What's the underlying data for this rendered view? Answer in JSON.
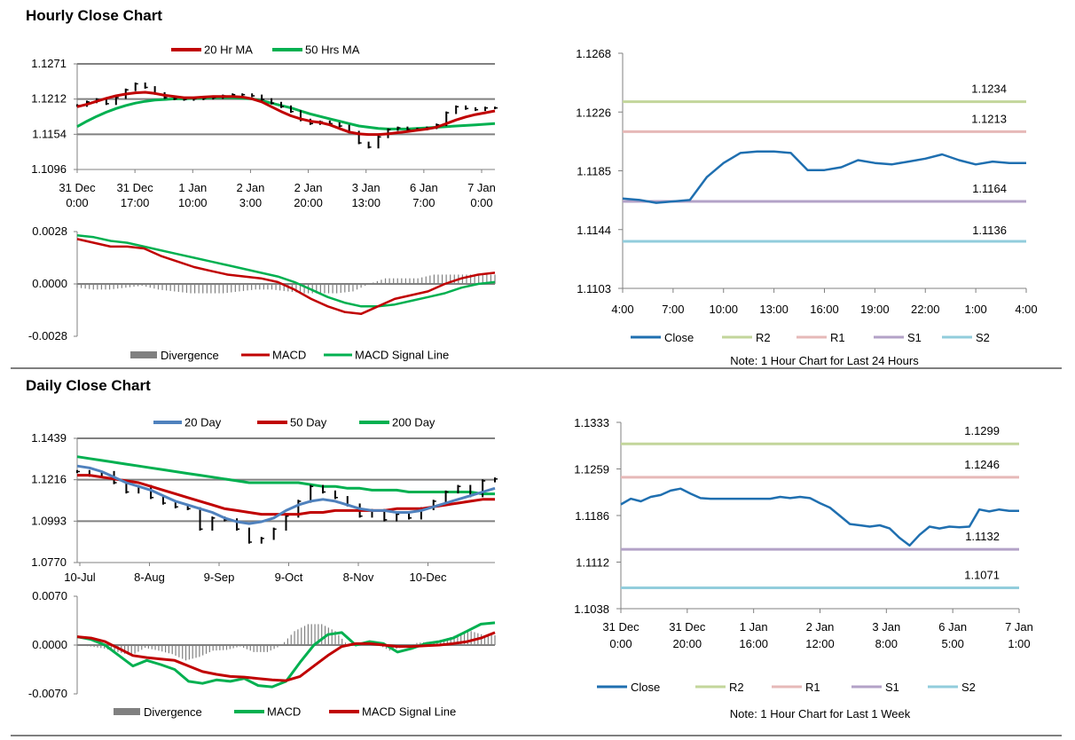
{
  "sections": {
    "hourly_title": "Hourly Close Chart",
    "daily_title": "Daily Close Chart"
  },
  "colors": {
    "close": "#1f6fb0",
    "r2": "#c3d69b",
    "r1": "#e6b9b8",
    "s1": "#b3a2c7",
    "s2": "#92cddc",
    "ma_red": "#c00000",
    "ma_green": "#00b050",
    "ma_blue": "#4f81bd",
    "divergence": "#808080",
    "grid": "#808080",
    "price": "#000000"
  },
  "chart_data": [
    {
      "id": "hourly-price",
      "type": "line",
      "title": "Hourly Close Chart",
      "legend": [
        "20 Hr MA",
        "50 Hrs MA"
      ],
      "y_ticks": [
        "1.1271",
        "1.1212",
        "1.1154",
        "1.1096"
      ],
      "ylim": [
        1.1096,
        1.1271
      ],
      "x_ticks": [
        [
          "31 Dec",
          "0:00"
        ],
        [
          "31 Dec",
          "17:00"
        ],
        [
          "1 Jan",
          "10:00"
        ],
        [
          "2 Jan",
          "3:00"
        ],
        [
          "2 Jan",
          "20:00"
        ],
        [
          "3 Jan",
          "13:00"
        ],
        [
          "6 Jan",
          "7:00"
        ],
        [
          "7 Jan",
          "0:00"
        ]
      ],
      "series": [
        {
          "name": "Price",
          "values": [
            1.1202,
            1.1208,
            1.1212,
            1.1205,
            1.1215,
            1.1228,
            1.1238,
            1.1232,
            1.1222,
            1.1215,
            1.1213,
            1.1212,
            1.1213,
            1.1214,
            1.1215,
            1.1218,
            1.122,
            1.122,
            1.1218,
            1.1212,
            1.1206,
            1.12,
            1.1192,
            1.1178,
            1.1172,
            1.1175,
            1.1172,
            1.1168,
            1.1158,
            1.114,
            1.1133,
            1.115,
            1.1162,
            1.1165,
            1.1162,
            1.1163,
            1.1165,
            1.117,
            1.119,
            1.12,
            1.1197,
            1.1195,
            1.1198,
            1.1198
          ]
        },
        {
          "name": "20 Hr MA",
          "values": [
            1.12,
            1.1204,
            1.1209,
            1.1214,
            1.1218,
            1.1221,
            1.1223,
            1.1224,
            1.1222,
            1.1219,
            1.1217,
            1.1215,
            1.1215,
            1.1216,
            1.1217,
            1.1217,
            1.1217,
            1.1216,
            1.1213,
            1.1208,
            1.12,
            1.1192,
            1.1185,
            1.118,
            1.1176,
            1.1174,
            1.117,
            1.1164,
            1.1158,
            1.1155,
            1.1154,
            1.1154,
            1.1155,
            1.1157,
            1.1159,
            1.1161,
            1.1163,
            1.1166,
            1.1172,
            1.1178,
            1.1183,
            1.1187,
            1.119,
            1.1193
          ]
        },
        {
          "name": "50 Hrs MA",
          "values": [
            1.1167,
            1.1176,
            1.1184,
            1.1191,
            1.1197,
            1.1202,
            1.1206,
            1.1209,
            1.1211,
            1.1212,
            1.1213,
            1.1213,
            1.1214,
            1.1214,
            1.1215,
            1.1215,
            1.1215,
            1.1214,
            1.1213,
            1.121,
            1.1206,
            1.1202,
            1.1198,
            1.1193,
            1.1188,
            1.1184,
            1.118,
            1.1176,
            1.1172,
            1.1168,
            1.1166,
            1.1164,
            1.1163,
            1.1163,
            1.1163,
            1.1164,
            1.1165,
            1.1166,
            1.1167,
            1.1168,
            1.1169,
            1.117,
            1.1171,
            1.1172
          ]
        }
      ]
    },
    {
      "id": "hourly-macd",
      "type": "line",
      "y_ticks": [
        "0.0028",
        "0.0000",
        "-0.0028"
      ],
      "ylim": [
        -0.0028,
        0.0028
      ],
      "legend": [
        "Divergence",
        "MACD",
        "MACD Signal Line"
      ],
      "series": [
        {
          "name": "MACD",
          "values": [
            0.0024,
            0.0022,
            0.002,
            0.002,
            0.0019,
            0.0015,
            0.0012,
            0.0009,
            0.0007,
            0.0005,
            0.0004,
            0.0003,
            0.0001,
            -0.0003,
            -0.0008,
            -0.0012,
            -0.0015,
            -0.0016,
            -0.0012,
            -0.0008,
            -0.0006,
            -0.0004,
            0.0,
            0.0003,
            0.0005,
            0.0006
          ]
        },
        {
          "name": "MACD Signal Line",
          "values": [
            0.0026,
            0.0025,
            0.0023,
            0.0022,
            0.002,
            0.0018,
            0.0016,
            0.0014,
            0.0012,
            0.001,
            0.0008,
            0.0006,
            0.0004,
            0.0001,
            -0.0003,
            -0.0007,
            -0.001,
            -0.0012,
            -0.0012,
            -0.0011,
            -0.0009,
            -0.0007,
            -0.0005,
            -0.0002,
            0.0,
            0.0001
          ]
        },
        {
          "name": "Divergence",
          "values": [
            -0.0002,
            -0.0003,
            -0.0003,
            -0.0002,
            -0.0001,
            -0.0003,
            -0.0004,
            -0.0005,
            -0.0005,
            -0.0005,
            -0.0004,
            -0.0003,
            -0.0003,
            -0.0004,
            -0.0005,
            -0.0005,
            -0.0005,
            -0.0004,
            0.0,
            0.0003,
            0.0003,
            0.0003,
            0.0005,
            0.0005,
            0.0005,
            0.0005
          ]
        }
      ]
    },
    {
      "id": "hourly-levels",
      "type": "line",
      "y_ticks": [
        "1.1268",
        "1.1226",
        "1.1185",
        "1.1144",
        "1.1103"
      ],
      "ylim": [
        1.1103,
        1.1268
      ],
      "x_ticks": [
        "4:00",
        "7:00",
        "10:00",
        "13:00",
        "16:00",
        "19:00",
        "22:00",
        "1:00",
        "4:00"
      ],
      "legend": [
        "Close",
        "R2",
        "R1",
        "S1",
        "S2"
      ],
      "note": "Note: 1 Hour Chart for Last 24 Hours",
      "levels": {
        "R2": 1.1234,
        "R1": 1.1213,
        "S1": 1.1164,
        "S2": 1.1136
      },
      "level_labels": {
        "R2": "1.1234",
        "R1": "1.1213",
        "S1": "1.1164",
        "S2": "1.1136"
      },
      "series": [
        {
          "name": "Close",
          "values": [
            1.1166,
            1.1165,
            1.1163,
            1.1164,
            1.1165,
            1.1181,
            1.1191,
            1.1198,
            1.1199,
            1.1199,
            1.1198,
            1.1186,
            1.1186,
            1.1188,
            1.1193,
            1.1191,
            1.119,
            1.1192,
            1.1194,
            1.1197,
            1.1193,
            1.119,
            1.1192,
            1.1191,
            1.1191
          ]
        }
      ]
    },
    {
      "id": "daily-price",
      "type": "line",
      "title": "Daily Close Chart",
      "legend": [
        "20 Day",
        "50 Day",
        "200 Day"
      ],
      "y_ticks": [
        "1.1439",
        "1.1216",
        "1.0993",
        "1.0770"
      ],
      "ylim": [
        1.077,
        1.1439
      ],
      "x_ticks": [
        "10-Jul",
        "8-Aug",
        "9-Sep",
        "9-Oct",
        "8-Nov",
        "10-Dec"
      ],
      "series": [
        {
          "name": "Price",
          "values": [
            1.126,
            1.124,
            1.1255,
            1.12,
            1.115,
            1.118,
            1.112,
            1.109,
            1.107,
            1.106,
            1.095,
            1.101,
            1.1,
            1.095,
            1.088,
            1.09,
            1.095,
            1.102,
            1.11,
            1.118,
            1.115,
            1.112,
            1.108,
            1.102,
            1.105,
            1.1,
            1.103,
            1.101,
            1.106,
            1.11,
            1.115,
            1.118,
            1.113,
            1.121,
            1.122
          ]
        },
        {
          "name": "20 Day",
          "values": [
            1.129,
            1.128,
            1.126,
            1.123,
            1.12,
            1.118,
            1.116,
            1.113,
            1.11,
            1.108,
            1.106,
            1.104,
            1.101,
            1.099,
            1.098,
            1.099,
            1.101,
            1.105,
            1.108,
            1.11,
            1.111,
            1.11,
            1.108,
            1.106,
            1.105,
            1.105,
            1.104,
            1.104,
            1.105,
            1.107,
            1.109,
            1.111,
            1.113,
            1.115,
            1.117
          ]
        },
        {
          "name": "50 Day",
          "values": [
            1.124,
            1.124,
            1.123,
            1.122,
            1.121,
            1.12,
            1.118,
            1.116,
            1.114,
            1.112,
            1.11,
            1.108,
            1.106,
            1.105,
            1.104,
            1.103,
            1.103,
            1.103,
            1.103,
            1.104,
            1.104,
            1.105,
            1.105,
            1.105,
            1.105,
            1.105,
            1.106,
            1.106,
            1.106,
            1.107,
            1.108,
            1.109,
            1.11,
            1.111,
            1.111
          ]
        },
        {
          "name": "200 Day",
          "values": [
            1.134,
            1.133,
            1.132,
            1.131,
            1.13,
            1.129,
            1.128,
            1.127,
            1.126,
            1.125,
            1.124,
            1.123,
            1.122,
            1.121,
            1.12,
            1.12,
            1.12,
            1.12,
            1.12,
            1.119,
            1.118,
            1.118,
            1.117,
            1.117,
            1.116,
            1.116,
            1.116,
            1.115,
            1.115,
            1.115,
            1.115,
            1.115,
            1.115,
            1.114,
            1.114
          ]
        }
      ]
    },
    {
      "id": "daily-macd",
      "type": "line",
      "y_ticks": [
        "0.0070",
        "0.0000",
        "-0.0070"
      ],
      "ylim": [
        -0.007,
        0.007
      ],
      "legend": [
        "Divergence",
        "MACD",
        "MACD Signal Line"
      ],
      "series": [
        {
          "name": "MACD",
          "values": [
            0.0012,
            0.0008,
            0.0,
            -0.0015,
            -0.003,
            -0.0022,
            -0.0028,
            -0.0035,
            -0.0052,
            -0.0055,
            -0.005,
            -0.0052,
            -0.0048,
            -0.0058,
            -0.006,
            -0.0052,
            -0.0025,
            0.0,
            0.0015,
            0.0018,
            0.0,
            0.0005,
            0.0002,
            -0.001,
            -0.0005,
            0.0002,
            0.0005,
            0.001,
            0.002,
            0.003,
            0.0032
          ]
        },
        {
          "name": "MACD Signal Line",
          "values": [
            0.0012,
            0.001,
            0.0005,
            -0.0005,
            -0.0015,
            -0.0018,
            -0.002,
            -0.0022,
            -0.003,
            -0.0038,
            -0.0042,
            -0.0045,
            -0.0046,
            -0.0048,
            -0.005,
            -0.0051,
            -0.0045,
            -0.003,
            -0.0015,
            -0.0002,
            0.0002,
            0.0002,
            0.0,
            -0.0002,
            -0.0002,
            -0.0001,
            0.0,
            0.0002,
            0.0005,
            0.001,
            0.0018
          ]
        },
        {
          "name": "Divergence",
          "values": [
            0.0,
            -0.0002,
            -0.0005,
            -0.001,
            -0.0015,
            -0.0004,
            -0.0008,
            -0.0013,
            -0.0022,
            -0.0017,
            -0.0008,
            -0.0007,
            -0.0002,
            -0.001,
            -0.001,
            -0.0001,
            0.002,
            0.003,
            0.003,
            0.002,
            -0.0002,
            0.0003,
            0.0002,
            -0.0008,
            -0.0003,
            0.0003,
            0.0005,
            0.0008,
            0.0015,
            0.002,
            0.0014
          ]
        }
      ]
    },
    {
      "id": "daily-levels",
      "type": "line",
      "y_ticks": [
        "1.1333",
        "1.1259",
        "1.1186",
        "1.1112",
        "1.1038"
      ],
      "ylim": [
        1.1038,
        1.1333
      ],
      "x_ticks": [
        [
          "31 Dec",
          "0:00"
        ],
        [
          "31 Dec",
          "20:00"
        ],
        [
          "1 Jan",
          "16:00"
        ],
        [
          "2 Jan",
          "12:00"
        ],
        [
          "3 Jan",
          "8:00"
        ],
        [
          "6 Jan",
          "5:00"
        ],
        [
          "7 Jan",
          "1:00"
        ]
      ],
      "legend": [
        "Close",
        "R2",
        "R1",
        "S1",
        "S2"
      ],
      "note": "Note: 1 Hour Chart for Last 1 Week",
      "levels": {
        "R2": 1.1299,
        "R1": 1.1246,
        "S1": 1.1132,
        "S2": 1.1071
      },
      "level_labels": {
        "R2": "1.1299",
        "R1": "1.1246",
        "S1": "1.1132",
        "S2": "1.1071"
      },
      "series": [
        {
          "name": "Close",
          "values": [
            1.1203,
            1.1212,
            1.1208,
            1.1215,
            1.1218,
            1.1225,
            1.1228,
            1.122,
            1.1213,
            1.1212,
            1.1212,
            1.1212,
            1.1212,
            1.1212,
            1.1212,
            1.1212,
            1.1215,
            1.1213,
            1.1215,
            1.1213,
            1.1205,
            1.1198,
            1.1185,
            1.1172,
            1.117,
            1.1168,
            1.117,
            1.1165,
            1.115,
            1.1138,
            1.1155,
            1.1168,
            1.1165,
            1.1168,
            1.1167,
            1.1168,
            1.1195,
            1.1192,
            1.1195,
            1.1193,
            1.1193
          ]
        }
      ]
    }
  ]
}
